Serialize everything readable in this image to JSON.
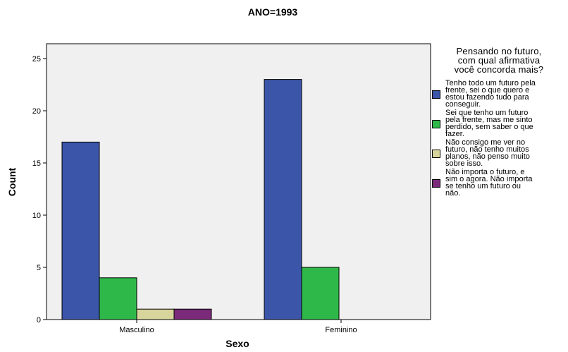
{
  "chart_data": {
    "type": "bar",
    "title": "ANO=1993",
    "xlabel": "Sexo",
    "ylabel": "Count",
    "categories": [
      "Masculino",
      "Feminino"
    ],
    "ylim": [
      0,
      25
    ],
    "yticks": [
      0,
      5,
      10,
      15,
      20,
      25
    ],
    "grid": false,
    "legend_title": "Pensando no futuro,\ncom qual afirmativa\nvocê concorda mais?",
    "legend_position": "right",
    "series": [
      {
        "name": "Tenho todo um futuro pela\nfrente, sei o que quero e\nestou fazendo tudo para\nconseguir.",
        "color": "#3b55a8",
        "values": [
          17,
          23
        ]
      },
      {
        "name": "Sei que tenho um futuro\npela frente, mas me sinto\nperdido, sem saber o que\nfazer.",
        "color": "#2fb84a",
        "values": [
          4,
          5
        ]
      },
      {
        "name": "Não consigo me ver no\nfuturo, não tenho muitos\nplanos, não penso muito\nsobre isso.",
        "color": "#d8d59c",
        "values": [
          1,
          0
        ]
      },
      {
        "name": "Não importa o futuro, e\nsim o agora. Não importa\nse tenho um futuro ou\nnão.",
        "color": "#7b2a7a",
        "values": [
          1,
          0
        ]
      }
    ],
    "plot_background": "#f0f0f0"
  }
}
